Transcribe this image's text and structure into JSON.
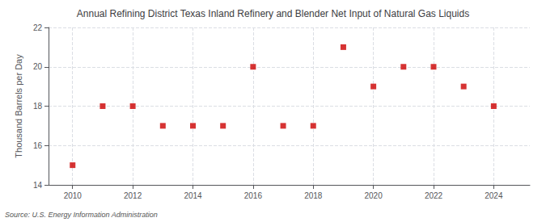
{
  "chart_data": {
    "type": "scatter",
    "title": "Annual Refining District Texas Inland Refinery and Blender Net Input of Natural Gas Liquids",
    "ylabel": "Thousand Barrels per Day",
    "source": "Source: U.S. Energy Information Administration",
    "x": [
      2010,
      2011,
      2012,
      2013,
      2014,
      2015,
      2016,
      2017,
      2018,
      2019,
      2020,
      2021,
      2022,
      2023,
      2024
    ],
    "values": [
      15.0,
      18.0,
      18.0,
      17.0,
      17.0,
      17.0,
      20.0,
      17.0,
      17.0,
      21.0,
      19.0,
      20.0,
      20.0,
      19.0,
      18.0
    ],
    "color": "#cc0000",
    "marker": "square",
    "xlim": [
      2009.2,
      2025.2
    ],
    "xticks": [
      2010,
      2012,
      2014,
      2016,
      2018,
      2020,
      2022,
      2024
    ],
    "ylim": [
      14,
      22
    ],
    "yticks": [
      14,
      16,
      18,
      20,
      22
    ],
    "grid": true
  }
}
